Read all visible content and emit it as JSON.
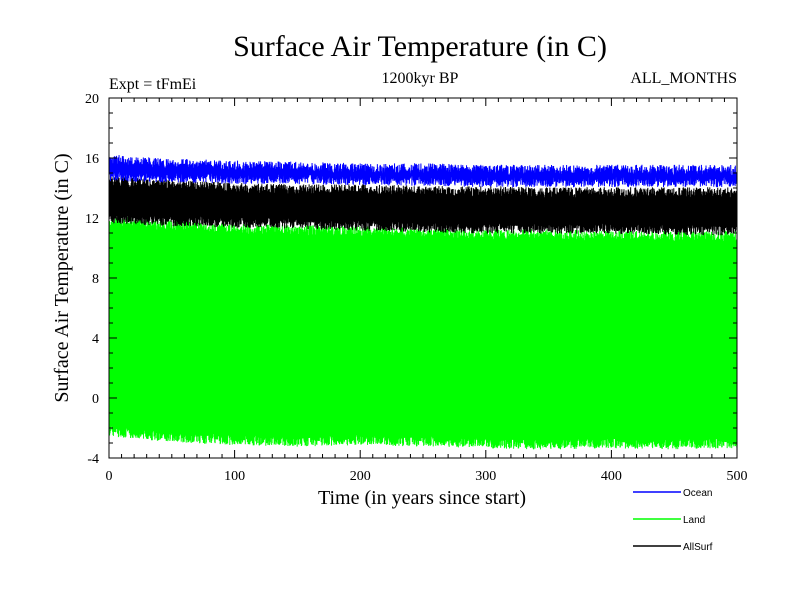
{
  "chart_data": {
    "type": "line",
    "title": "Surface Air Temperature (in C)",
    "subtitle_left": "Expt = tFmEi",
    "subtitle_center": "1200kyr BP",
    "subtitle_right": "ALL_MONTHS",
    "xlabel": "Time (in years since start)",
    "ylabel": "Surface Air Temperature (in C)",
    "xlim": [
      0,
      500
    ],
    "ylim": [
      -4,
      20
    ],
    "xticks": [
      0,
      100,
      200,
      300,
      400,
      500
    ],
    "yticks": [
      -4,
      0,
      4,
      8,
      12,
      16,
      20
    ],
    "grid": false,
    "legend_position": "bottom-right",
    "series": [
      {
        "name": "Land",
        "color": "#00ff00",
        "seasonal": true,
        "min_points": [
          [
            0,
            -2.2
          ],
          [
            50,
            -2.6
          ],
          [
            100,
            -2.8
          ],
          [
            150,
            -2.9
          ],
          [
            200,
            -2.8
          ],
          [
            250,
            -2.9
          ],
          [
            300,
            -3.0
          ],
          [
            350,
            -3.1
          ],
          [
            400,
            -3.0
          ],
          [
            450,
            -3.1
          ],
          [
            500,
            -3.0
          ]
        ],
        "max_points": [
          [
            0,
            11.8
          ],
          [
            50,
            11.5
          ],
          [
            100,
            11.3
          ],
          [
            150,
            11.2
          ],
          [
            200,
            11.1
          ],
          [
            250,
            11.0
          ],
          [
            300,
            10.9
          ],
          [
            350,
            10.9
          ],
          [
            400,
            10.8
          ],
          [
            450,
            10.8
          ],
          [
            500,
            10.8
          ]
        ]
      },
      {
        "name": "AllSurf",
        "color": "#000000",
        "seasonal": true,
        "min_points": [
          [
            0,
            12.0
          ],
          [
            50,
            11.8
          ],
          [
            100,
            11.7
          ],
          [
            150,
            11.6
          ],
          [
            200,
            11.5
          ],
          [
            250,
            11.4
          ],
          [
            300,
            11.3
          ],
          [
            350,
            11.3
          ],
          [
            400,
            11.3
          ],
          [
            450,
            11.2
          ],
          [
            500,
            11.2
          ]
        ],
        "max_points": [
          [
            0,
            14.5
          ],
          [
            50,
            14.2
          ],
          [
            100,
            14.0
          ],
          [
            150,
            13.9
          ],
          [
            200,
            13.9
          ],
          [
            250,
            13.8
          ],
          [
            300,
            13.8
          ],
          [
            350,
            13.7
          ],
          [
            400,
            13.7
          ],
          [
            450,
            13.7
          ],
          [
            500,
            13.7
          ]
        ]
      },
      {
        "name": "Ocean",
        "color": "#0000ff",
        "seasonal": true,
        "min_points": [
          [
            0,
            14.8
          ],
          [
            50,
            14.7
          ],
          [
            100,
            14.6
          ],
          [
            150,
            14.6
          ],
          [
            200,
            14.5
          ],
          [
            250,
            14.5
          ],
          [
            300,
            14.4
          ],
          [
            350,
            14.4
          ],
          [
            400,
            14.4
          ],
          [
            450,
            14.4
          ],
          [
            500,
            14.4
          ]
        ],
        "max_points": [
          [
            0,
            15.9
          ],
          [
            50,
            15.6
          ],
          [
            100,
            15.5
          ],
          [
            150,
            15.4
          ],
          [
            200,
            15.3
          ],
          [
            250,
            15.3
          ],
          [
            300,
            15.2
          ],
          [
            350,
            15.2
          ],
          [
            400,
            15.2
          ],
          [
            450,
            15.2
          ],
          [
            500,
            15.2
          ]
        ]
      }
    ],
    "legend": [
      {
        "name": "Ocean",
        "color": "#0000ff"
      },
      {
        "name": "Land",
        "color": "#00ff00"
      },
      {
        "name": "AllSurf",
        "color": "#000000"
      }
    ]
  }
}
